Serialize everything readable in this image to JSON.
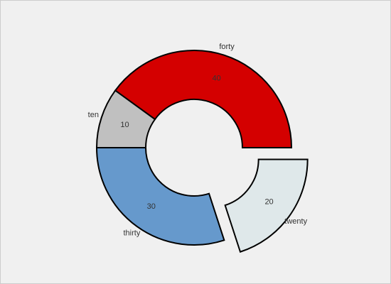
{
  "chart_data": {
    "type": "donut",
    "categories": [
      "forty",
      "ten",
      "thirty",
      "twenty"
    ],
    "values": [
      40,
      10,
      30,
      20
    ],
    "colors": [
      "#d40000",
      "#c0c0c0",
      "#6699cc",
      "#dfe8ea"
    ],
    "explode": [
      false,
      false,
      false,
      true
    ]
  }
}
